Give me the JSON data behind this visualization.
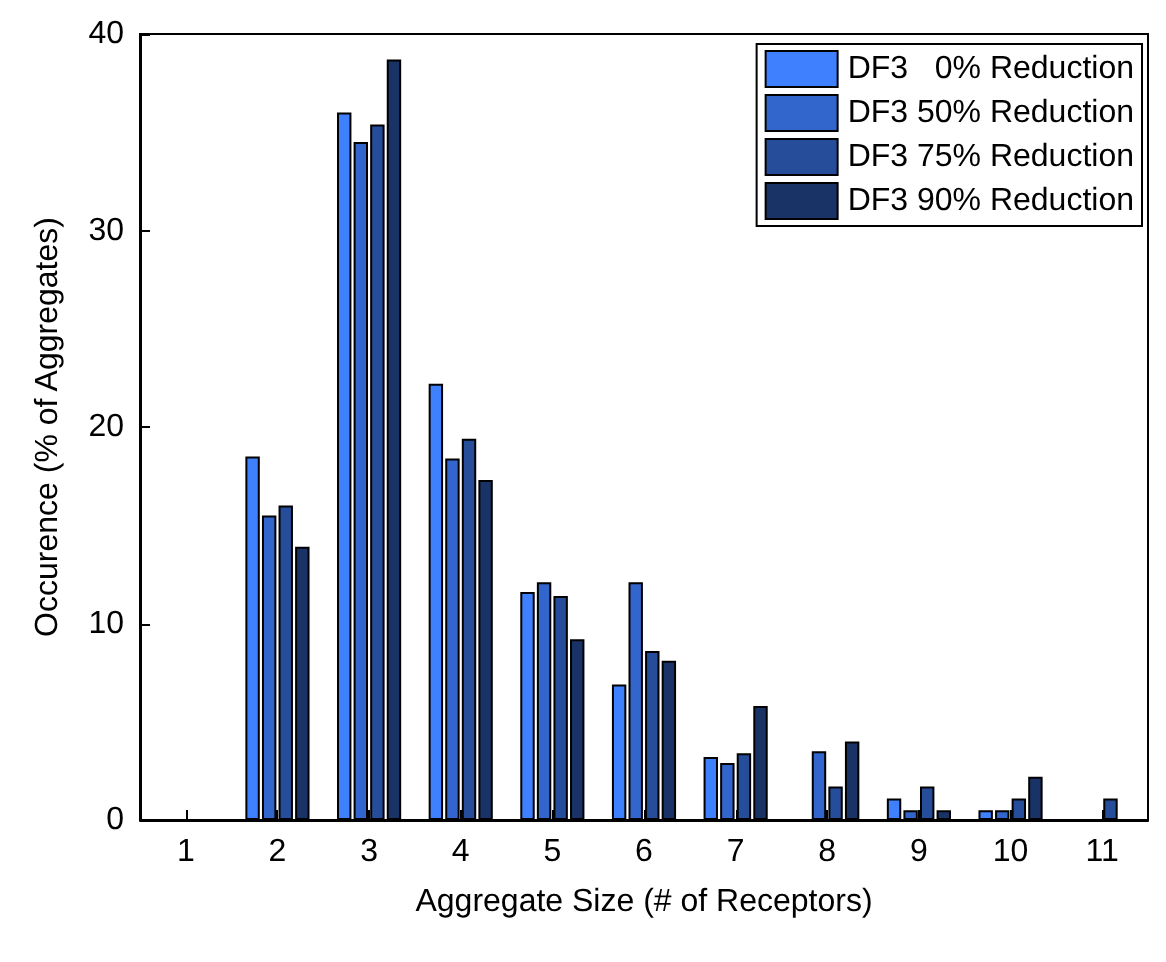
{
  "chart_data": {
    "type": "bar",
    "xlabel": "Aggregate Size (# of Receptors)",
    "ylabel": "Occurence (% of Aggregates)",
    "categories": [
      "1",
      "2",
      "3",
      "4",
      "5",
      "6",
      "7",
      "8",
      "9",
      "10",
      "11"
    ],
    "series": [
      {
        "name": "DF3   0% Reduction",
        "color": "#3f80ff",
        "values": [
          0,
          18.5,
          36,
          22.2,
          11.6,
          6.9,
          3.2,
          0,
          1.1,
          0.5,
          0
        ]
      },
      {
        "name": "DF3 50% Reduction",
        "color": "#3366cc",
        "values": [
          0,
          15.5,
          34.5,
          18.4,
          12.1,
          12.1,
          2.9,
          3.5,
          0.5,
          0.5,
          0
        ]
      },
      {
        "name": "DF3 75% Reduction",
        "color": "#264d99",
        "values": [
          0,
          16,
          35.4,
          19.4,
          11.4,
          8.6,
          3.4,
          1.7,
          1.7,
          1.1,
          1.1
        ]
      },
      {
        "name": "DF3 90% Reduction",
        "color": "#1a3366",
        "values": [
          0,
          13.9,
          38.7,
          17.3,
          9.2,
          8.1,
          5.8,
          4,
          0.5,
          2.2,
          0
        ]
      }
    ],
    "ylim": [
      0,
      40
    ],
    "yticks": [
      0,
      10,
      20,
      30,
      40
    ],
    "grid": false,
    "legend": "top right"
  }
}
